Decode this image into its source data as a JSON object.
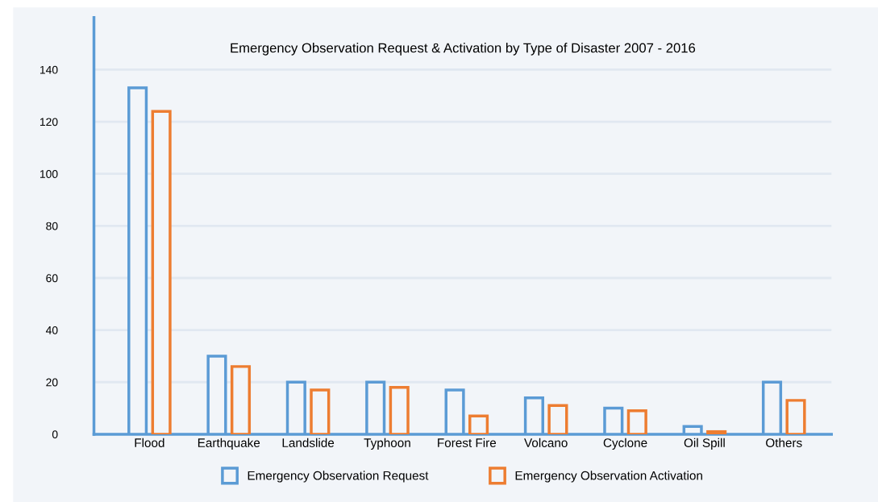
{
  "chart_data": {
    "type": "bar",
    "title": "Emergency Observation Request & Activation by Type of Disaster 2007 - 2016",
    "categories": [
      "Flood",
      "Earthquake",
      "Landslide",
      "Typhoon",
      "Forest Fire",
      "Volcano",
      "Cyclone",
      "Oil Spill",
      "Others"
    ],
    "series": [
      {
        "name": "Emergency Observation Request",
        "color": "#5b9bd5",
        "values": [
          133,
          30,
          20,
          20,
          17,
          14,
          10,
          3,
          20
        ]
      },
      {
        "name": "Emergency Observation Activation",
        "color": "#ed7d31",
        "values": [
          124,
          26,
          17,
          18,
          7,
          11,
          9,
          1,
          13
        ]
      }
    ],
    "ylim": [
      0,
      160
    ],
    "yticks": [
      0,
      20,
      40,
      60,
      80,
      100,
      120,
      140
    ],
    "grid": "y",
    "legend": "bottom"
  }
}
